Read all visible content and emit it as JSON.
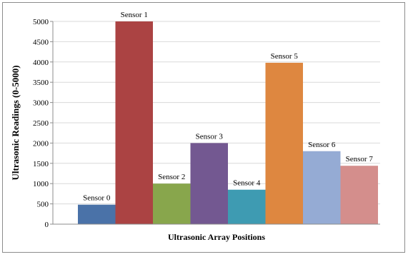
{
  "chart_data": {
    "type": "bar",
    "title": "",
    "xlabel": "Ultrasonic Array Positions",
    "ylabel": "Ultrasonic Readings (0-5000)",
    "ylim": [
      0,
      5000
    ],
    "yticks": [
      0,
      500,
      1000,
      1500,
      2000,
      2500,
      3000,
      3500,
      4000,
      4500,
      5000
    ],
    "grid": true,
    "legend": "none",
    "categories": [
      "Sensor 0",
      "Sensor 1",
      "Sensor 2",
      "Sensor 3",
      "Sensor 4",
      "Sensor 5",
      "Sensor 6",
      "Sensor 7"
    ],
    "values": [
      480,
      5000,
      1000,
      2000,
      850,
      3980,
      1800,
      1440
    ],
    "colors": [
      "#4a72a8",
      "#ab4343",
      "#88a64c",
      "#735891",
      "#3e9bb2",
      "#de8740",
      "#95abd4",
      "#d48e8c"
    ]
  }
}
